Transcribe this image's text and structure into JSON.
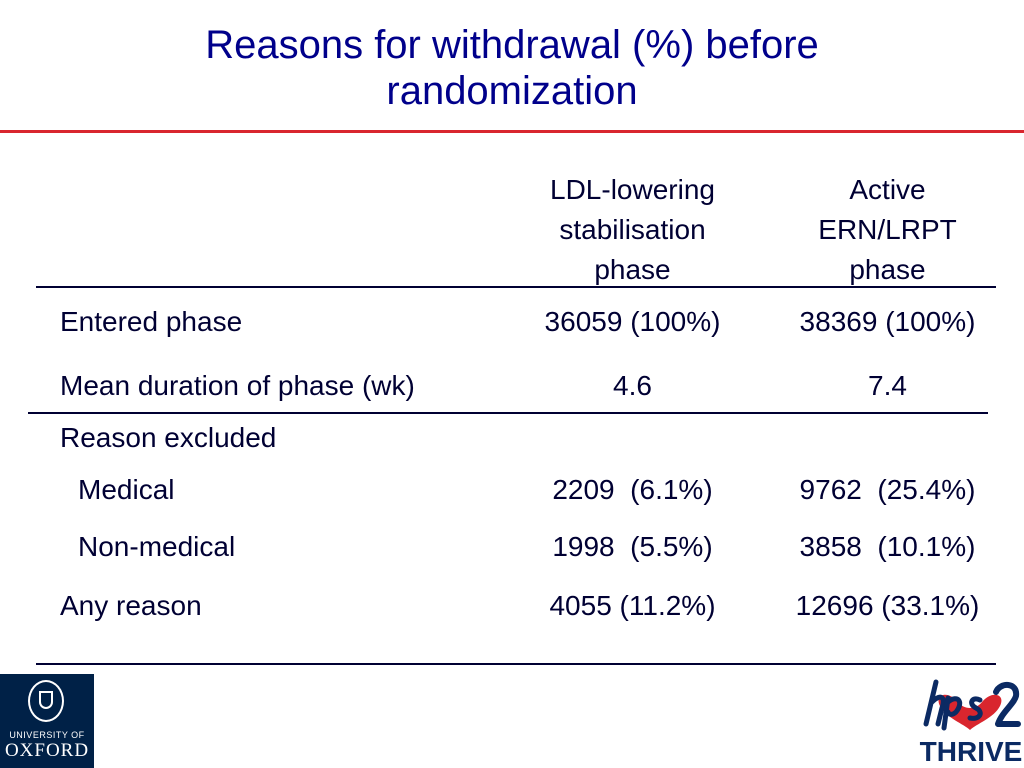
{
  "title": {
    "line1": "Reasons for withdrawal (%) before",
    "line2": "randomization"
  },
  "columns": [
    {
      "lines": [
        "LDL-lowering",
        "stabilisation",
        "phase"
      ]
    },
    {
      "lines": [
        "Active",
        "ERN/LRPT",
        "phase"
      ]
    }
  ],
  "rows": {
    "entered_phase": {
      "label": "Entered phase",
      "values": [
        "36059 (100%)",
        "38369 (100%)"
      ]
    },
    "mean_duration": {
      "label": "Mean duration of phase (wk)",
      "values": [
        "4.6",
        "7.4"
      ]
    },
    "reason_excluded": {
      "label": "Reason excluded"
    },
    "medical": {
      "label": "Medical",
      "values": [
        "2209  (6.1%)",
        "9762  (25.4%)"
      ]
    },
    "non_medical": {
      "label": "Non-medical",
      "values": [
        "1998  (5.5%)",
        "3858  (10.1%)"
      ]
    },
    "any_reason": {
      "label": "Any reason",
      "values": [
        "4055 (11.2%)",
        "12696 (33.1%)"
      ]
    }
  },
  "logos": {
    "oxford": {
      "line1": "UNIVERSITY OF",
      "line2": "OXFORD"
    },
    "thrive": {
      "mark": "hps2",
      "text": "THRIVE"
    }
  },
  "colors": {
    "title": "#00008b",
    "rule": "#d9262e",
    "text": "#000033",
    "oxford_blue": "#002147"
  }
}
